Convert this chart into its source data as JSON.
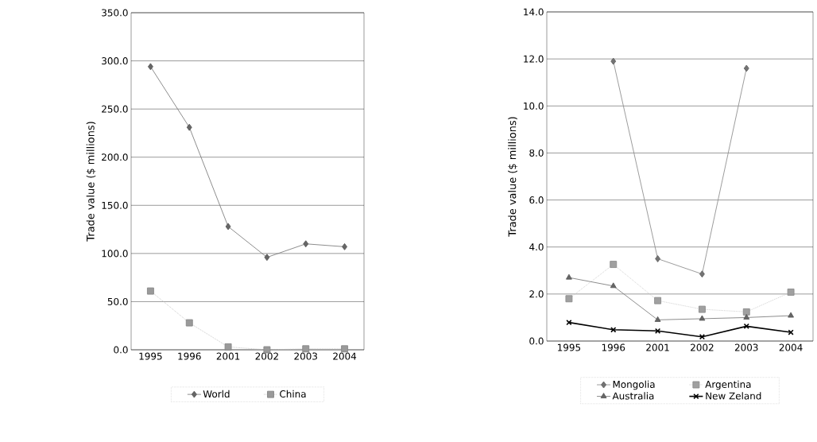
{
  "chart_data": [
    {
      "type": "line",
      "ylabel": "Trade value ($ millions)",
      "categories": [
        "1995",
        "1996",
        "2001",
        "2002",
        "2003",
        "2004"
      ],
      "ylim": [
        0,
        350
      ],
      "yticks": [
        {
          "value": 0,
          "label": "0.0"
        },
        {
          "value": 50,
          "label": "50.0"
        },
        {
          "value": 100,
          "label": "100.0"
        },
        {
          "value": 150,
          "label": "150.0"
        },
        {
          "value": 200,
          "label": "200.0"
        },
        {
          "value": 250,
          "label": "250.0"
        },
        {
          "value": 300,
          "label": "300.0"
        },
        {
          "value": 350,
          "label": "350.0"
        }
      ],
      "grid": "y",
      "legend": "bottom",
      "series": [
        {
          "name": "World",
          "color": "#808080",
          "marker": "diamond",
          "line_style": "solid",
          "values": [
            294,
            231,
            128,
            96,
            110,
            107
          ]
        },
        {
          "name": "China",
          "color": "#c0c0c0",
          "marker": "square",
          "line_style": "dotted",
          "values": [
            61,
            28,
            3,
            0,
            1,
            1
          ]
        }
      ]
    },
    {
      "type": "line",
      "ylabel": "Trade value ($ millions)",
      "categories": [
        "1995",
        "1996",
        "2001",
        "2002",
        "2003",
        "2004"
      ],
      "ylim": [
        0,
        14
      ],
      "yticks": [
        {
          "value": 0,
          "label": "0.0"
        },
        {
          "value": 2,
          "label": "2.0"
        },
        {
          "value": 4,
          "label": "4.0"
        },
        {
          "value": 6,
          "label": "6.0"
        },
        {
          "value": 8,
          "label": "8.0"
        },
        {
          "value": 10,
          "label": "10.0"
        },
        {
          "value": 12,
          "label": "12.0"
        },
        {
          "value": 14,
          "label": "14.0"
        }
      ],
      "grid": "y",
      "legend": "bottom",
      "series": [
        {
          "name": "Mongolia",
          "color": "#909090",
          "marker": "diamond",
          "line_style": "solid",
          "values": [
            null,
            11.9,
            3.5,
            2.85,
            11.6,
            null
          ]
        },
        {
          "name": "Argentina",
          "color": "#c8c8c8",
          "marker": "square",
          "line_style": "dotted",
          "values": [
            1.8,
            3.26,
            1.72,
            1.35,
            1.24,
            2.08
          ]
        },
        {
          "name": "Australia",
          "color": "#808080",
          "marker": "triangle",
          "line_style": "solid",
          "values": [
            2.7,
            2.34,
            0.9,
            0.95,
            1.0,
            1.08
          ]
        },
        {
          "name": "New Zeland",
          "color": "#000000",
          "marker": "cross",
          "line_style": "solid",
          "values": [
            0.79,
            0.48,
            0.43,
            0.18,
            0.63,
            0.37
          ]
        }
      ]
    }
  ]
}
